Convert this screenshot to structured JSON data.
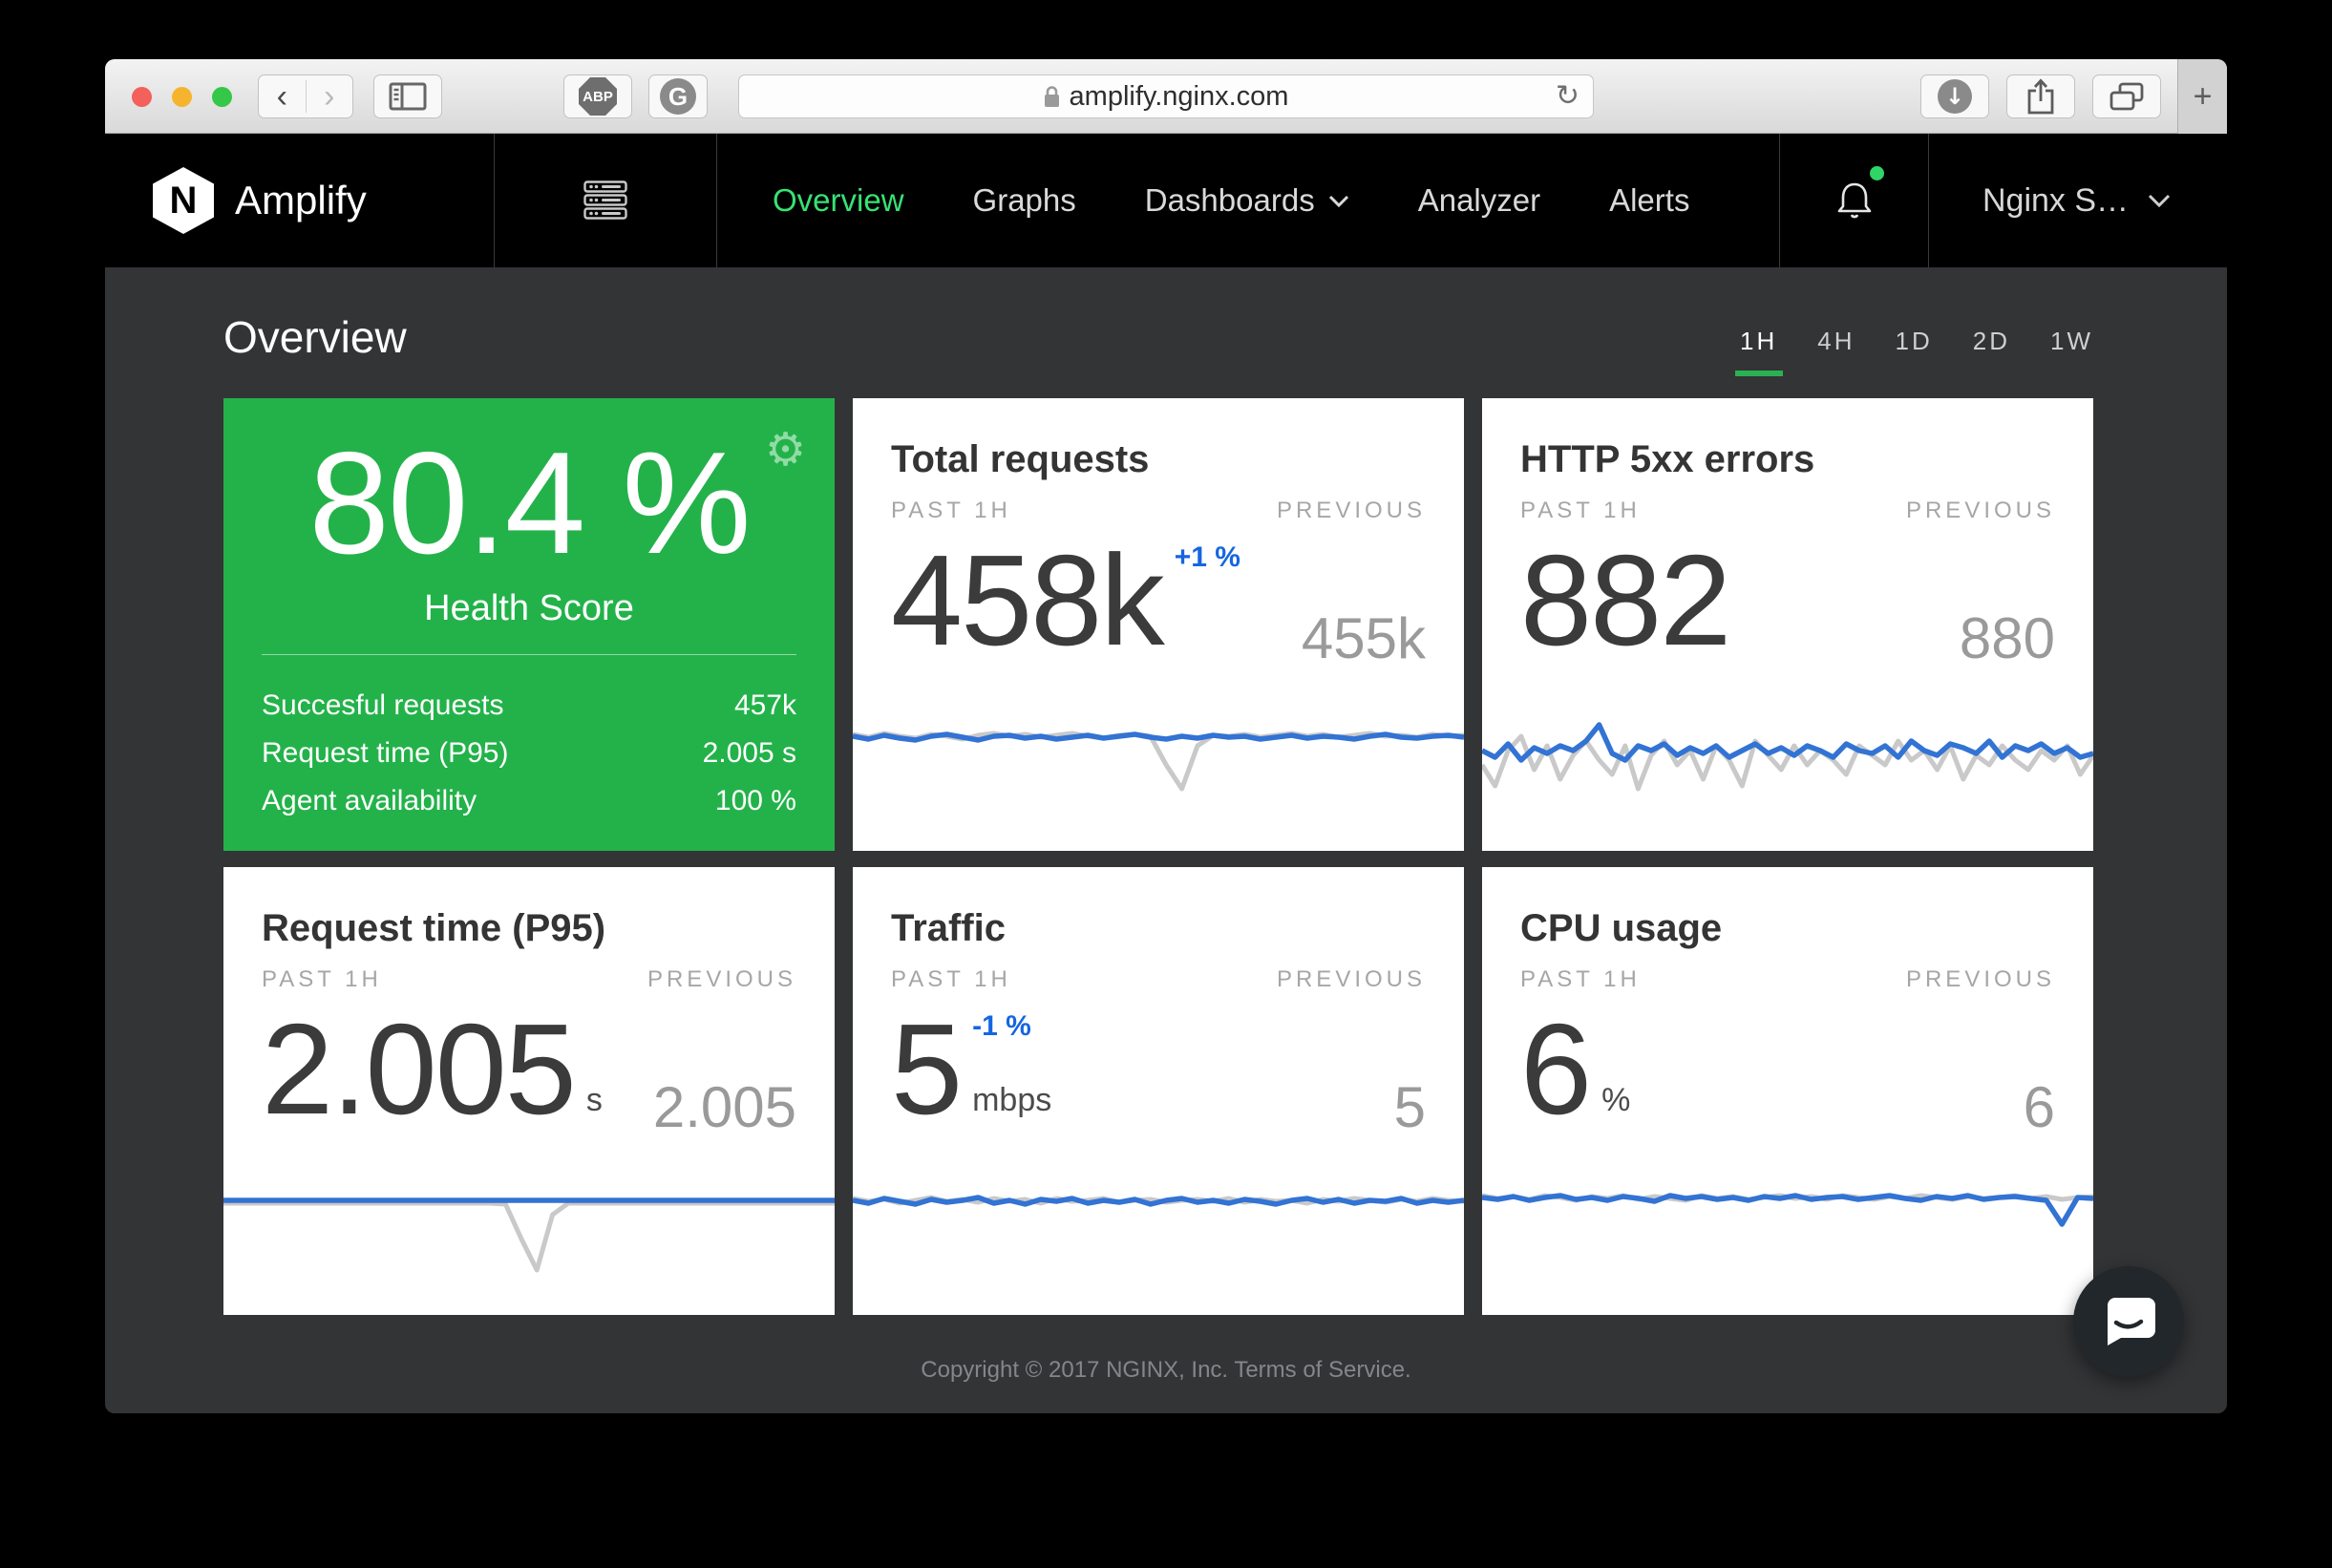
{
  "colors": {
    "chart_blue": "#3273d4",
    "chart_gray": "#c9c9c9",
    "delta_blue": "#1566e0",
    "accent_green": "#23b24a",
    "nav_active_green": "#37e274",
    "underline_green": "#2bb151"
  },
  "icons": {
    "back": "‹",
    "forward": "›",
    "abp": "ABP",
    "extension_g": "G",
    "reload": "↻",
    "downloads_arrow": "↓",
    "new_tab": "+",
    "gear": "⚙"
  },
  "browser": {
    "address": "amplify.nginx.com"
  },
  "navbar": {
    "logo_letter": "N",
    "brand": "Amplify",
    "items": [
      {
        "label": "Overview",
        "active": true
      },
      {
        "label": "Graphs",
        "active": false
      },
      {
        "label": "Dashboards",
        "active": false
      },
      {
        "label": "Analyzer",
        "active": false
      },
      {
        "label": "Alerts",
        "active": false
      }
    ],
    "account_label": "Nginx S…"
  },
  "page": {
    "title": "Overview",
    "time_ranges": [
      {
        "label": "1H",
        "active": true
      },
      {
        "label": "4H",
        "active": false
      },
      {
        "label": "1D",
        "active": false
      },
      {
        "label": "2D",
        "active": false
      },
      {
        "label": "1W",
        "active": false
      }
    ],
    "footer": "Copyright © 2017 NGINX, Inc. Terms of Service."
  },
  "health_card": {
    "score": "80.4 %",
    "label": "Health Score",
    "rows": [
      {
        "label": "Succesful requests",
        "value": "457k"
      },
      {
        "label": "Request time (P95)",
        "value": "2.005 s"
      },
      {
        "label": "Agent availability",
        "value": "100 %"
      }
    ]
  },
  "metric_cards": [
    {
      "title": "Total requests",
      "past_label": "PAST 1H",
      "previous_label": "PREVIOUS",
      "value": "458k",
      "delta": "+1 %",
      "unit": "",
      "previous": "455k",
      "chart": {
        "curr": [
          30,
          33,
          29,
          32,
          34,
          30,
          28,
          31,
          34,
          30,
          29,
          32,
          30,
          33,
          31,
          29,
          32,
          30,
          28,
          31,
          33,
          30,
          32,
          29,
          31,
          30,
          33,
          31,
          29,
          32,
          30,
          31,
          33,
          30,
          28,
          31,
          32,
          30,
          29,
          31
        ],
        "prev": [
          28,
          31,
          27,
          30,
          32,
          28,
          30,
          33,
          29,
          27,
          30,
          28,
          31,
          29,
          27,
          30,
          32,
          29,
          28,
          30,
          60,
          85,
          40,
          29,
          30,
          28,
          31,
          29,
          27,
          30,
          28,
          31,
          29,
          27,
          30,
          29,
          31,
          28,
          30,
          29
        ]
      }
    },
    {
      "title": "HTTP 5xx errors",
      "past_label": "PAST 1H",
      "previous_label": "PREVIOUS",
      "value": "882",
      "delta": "",
      "unit": "",
      "previous": "880",
      "chart": {
        "curr": [
          45,
          52,
          38,
          55,
          42,
          48,
          40,
          45,
          35,
          18,
          48,
          55,
          40,
          45,
          38,
          50,
          42,
          48,
          40,
          52,
          45,
          38,
          48,
          42,
          50,
          40,
          45,
          52,
          38,
          45,
          48,
          40,
          52,
          35,
          45,
          50,
          38,
          42,
          48,
          35,
          52,
          40,
          45,
          38,
          48,
          42,
          52,
          48
        ],
        "prev": [
          60,
          82,
          45,
          30,
          65,
          40,
          75,
          50,
          35,
          55,
          70,
          40,
          85,
          50,
          35,
          60,
          45,
          75,
          40,
          55,
          82,
          35,
          50,
          65,
          40,
          60,
          45,
          55,
          70,
          40,
          50,
          60,
          35,
          55,
          45,
          65,
          40,
          75,
          50,
          60,
          40,
          55,
          65,
          45,
          55,
          40,
          70,
          50
        ]
      }
    },
    {
      "title": "Request time (P95)",
      "past_label": "PAST 1H",
      "previous_label": "PREVIOUS",
      "value": "2.005",
      "delta": "",
      "unit": "s",
      "previous": "2.005",
      "chart": {
        "curr": [
          30,
          30,
          30,
          30,
          30,
          30,
          30,
          30,
          30,
          30,
          30,
          30,
          30,
          30,
          30,
          30,
          30,
          30,
          30,
          30,
          30,
          30,
          30,
          30,
          30,
          30,
          30,
          30,
          30,
          30,
          30,
          30,
          30,
          30,
          30,
          30,
          30,
          30,
          30,
          30
        ],
        "prev": [
          33,
          33,
          33,
          33,
          33,
          33,
          33,
          33,
          33,
          33,
          33,
          33,
          33,
          33,
          33,
          33,
          33,
          33,
          34,
          70,
          103,
          45,
          33,
          33,
          33,
          33,
          33,
          33,
          33,
          33,
          33,
          33,
          33,
          33,
          33,
          33,
          33,
          33,
          33,
          33
        ]
      }
    },
    {
      "title": "Traffic",
      "past_label": "PAST 1H",
      "previous_label": "PREVIOUS",
      "value": "5",
      "delta": "-1 %",
      "unit": "mbps",
      "previous": "5",
      "chart": {
        "curr": [
          30,
          33,
          28,
          31,
          34,
          29,
          32,
          30,
          27,
          33,
          30,
          34,
          29,
          31,
          28,
          33,
          30,
          32,
          29,
          34,
          30,
          28,
          32,
          30,
          33,
          29,
          31,
          34,
          30,
          28,
          32,
          29,
          33,
          30,
          31,
          28,
          33,
          30,
          32,
          30
        ],
        "prev": [
          28,
          31,
          29,
          33,
          30,
          27,
          31,
          29,
          32,
          28,
          31,
          29,
          33,
          28,
          31,
          30,
          28,
          32,
          30,
          29,
          32,
          30,
          29,
          31,
          28,
          32,
          29,
          31,
          30,
          33,
          29,
          31,
          28,
          30,
          32,
          29,
          31,
          28,
          30,
          31
        ]
      }
    },
    {
      "title": "CPU usage",
      "past_label": "PAST 1H",
      "previous_label": "PREVIOUS",
      "value": "6",
      "delta": "",
      "unit": "%",
      "previous": "6",
      "chart": {
        "curr": [
          27,
          29,
          26,
          30,
          27,
          25,
          29,
          27,
          30,
          26,
          28,
          31,
          25,
          28,
          26,
          29,
          27,
          30,
          26,
          28,
          25,
          29,
          27,
          26,
          29,
          27,
          25,
          28,
          30,
          26,
          28,
          25,
          29,
          27,
          26,
          28,
          30,
          55,
          27,
          28
        ],
        "prev": [
          25,
          28,
          26,
          29,
          25,
          27,
          30,
          26,
          28,
          25,
          29,
          26,
          28,
          30,
          25,
          28,
          26,
          29,
          27,
          25,
          28,
          26,
          29,
          25,
          27,
          29,
          26,
          28,
          25,
          27,
          29,
          26,
          28,
          27,
          25,
          28,
          26,
          29,
          27,
          26
        ]
      }
    }
  ]
}
